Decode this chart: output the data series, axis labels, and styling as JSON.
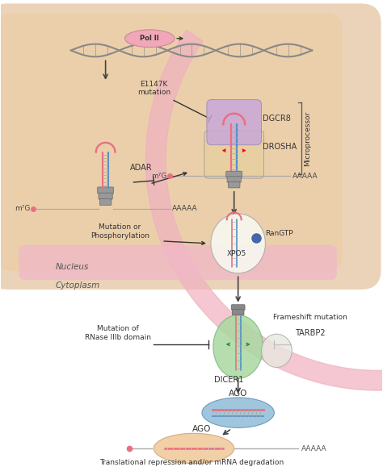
{
  "bg_color": "#ffffff",
  "pol2_label": "Pol II",
  "nucleus_label": "Nucleus",
  "cytoplasm_label": "Cytoplasm",
  "adar_label": "ADAR",
  "dgcr8_label": "DGCR8",
  "drosha_label": "DROSHA",
  "microprocessor_label": "Microprocessor",
  "e1147k_label": "E1147K\nmutation",
  "xpo5_label": "XPO5",
  "rangtp_label": "RanGTP",
  "mut_phos_label": "Mutation or\nPhosphorylation",
  "dicer1_label": "DICER1",
  "tarbp2_label": "TARBP2",
  "frameshift_label": "Frameshift mutation",
  "mut_rnase_label": "Mutation of\nRNase IIIb domain",
  "ago_label": "AGO",
  "bottom_label": "Translational repression and/or mRNA degradation",
  "m7g_label": "m⁷G",
  "aaaaa_label": "AAAAA",
  "pink": "#e87080",
  "blue": "#5090c8",
  "green": "#90c890",
  "purple_light": "#c8a8d8",
  "purple_mid": "#a888c0",
  "beige_body": "#f0c898",
  "blue_body": "#90c0e0",
  "green_body": "#a8d8a0",
  "gray_stem": "#888888",
  "nucleus_bg": "#d8a878",
  "nucleus_inner": "#e8c8a0",
  "membrane_pink": "#f0b8c8",
  "arrow_c": "#444444"
}
